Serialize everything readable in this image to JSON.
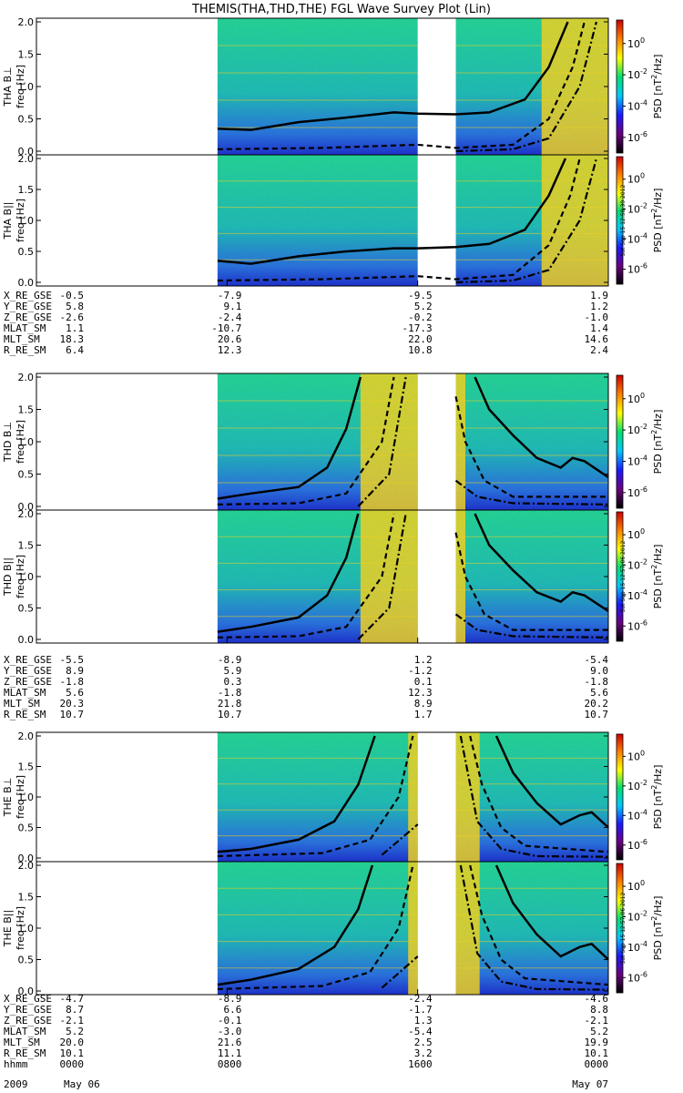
{
  "title": "THEMIS(THA,THD,THE) FGL Wave Survey Plot (Lin)",
  "colors": {
    "spectrogram_base": "#2bd08a",
    "spectrogram_low": "#1e3ad0",
    "spectrogram_high": "#f0d020",
    "hot": "#e05010",
    "curve": "#000000"
  },
  "colorbar": {
    "label": "PSD [nT^2/Hz]",
    "label_main": "PSD [nT",
    "label_sup": "2",
    "label_end": "/Hz]",
    "ticks": [
      {
        "base": "10",
        "exp": "0",
        "value": 0
      },
      {
        "base": "10",
        "exp": "-2",
        "value": -2
      },
      {
        "base": "10",
        "exp": "-4",
        "value": -4
      },
      {
        "base": "10",
        "exp": "-6",
        "value": -6
      }
    ],
    "range_log": [
      -7,
      1.5
    ],
    "stops": [
      "#000000",
      "#6a0080",
      "#1a1aff",
      "#00c8ff",
      "#00e070",
      "#ffff00",
      "#ff8000",
      "#d00000"
    ]
  },
  "chart_data": [
    {
      "type": "heatmap",
      "panel": "THA Bperp",
      "ylabel_top": "THA B⊥",
      "ylabel": "freq [Hz]",
      "y_ticks": [
        "2.0",
        "1.5",
        "1.0",
        "0.5",
        "0.0"
      ],
      "ylim": [
        0,
        2.0
      ],
      "xlim_hours": [
        0,
        24
      ],
      "data_gaps_hours": [
        [
          0,
          7.6
        ],
        [
          16.0,
          17.6
        ]
      ],
      "solid_curve": [
        [
          7.6,
          0.35
        ],
        [
          9.0,
          0.33
        ],
        [
          11.0,
          0.45
        ],
        [
          13.0,
          0.52
        ],
        [
          15.0,
          0.6
        ],
        [
          16.0,
          0.58
        ],
        [
          17.6,
          0.57
        ],
        [
          19.0,
          0.6
        ],
        [
          20.5,
          0.8
        ],
        [
          21.5,
          1.3
        ],
        [
          22.3,
          2.0
        ]
      ],
      "dashed_curve": [
        [
          7.6,
          0.03
        ],
        [
          12.0,
          0.05
        ],
        [
          16.0,
          0.1
        ],
        [
          17.6,
          0.05
        ],
        [
          20.0,
          0.1
        ],
        [
          21.5,
          0.5
        ],
        [
          22.5,
          1.3
        ],
        [
          23.0,
          2.0
        ]
      ],
      "dashdot_curve": [
        [
          17.6,
          0.0
        ],
        [
          20.0,
          0.03
        ],
        [
          21.5,
          0.2
        ],
        [
          22.8,
          1.0
        ],
        [
          23.5,
          2.0
        ]
      ]
    },
    {
      "type": "heatmap",
      "panel": "THA Bpar",
      "ylabel_top": "THA B||",
      "ylabel": "freq [Hz]",
      "y_ticks": [
        "2.0",
        "1.5",
        "1.0",
        "0.5",
        "0.0"
      ],
      "ylim": [
        0,
        2.0
      ],
      "xlim_hours": [
        0,
        24
      ],
      "data_gaps_hours": [
        [
          0,
          7.6
        ],
        [
          16.0,
          17.6
        ]
      ],
      "stamp": "Sat Sep 15 12:58:39 2012",
      "solid_curve": [
        [
          7.6,
          0.35
        ],
        [
          9.0,
          0.3
        ],
        [
          11.0,
          0.42
        ],
        [
          13.0,
          0.5
        ],
        [
          15.0,
          0.55
        ],
        [
          16.0,
          0.55
        ],
        [
          17.6,
          0.57
        ],
        [
          19.0,
          0.62
        ],
        [
          20.5,
          0.85
        ],
        [
          21.5,
          1.4
        ],
        [
          22.2,
          2.0
        ]
      ],
      "dashed_curve": [
        [
          7.6,
          0.03
        ],
        [
          12.0,
          0.05
        ],
        [
          16.0,
          0.1
        ],
        [
          17.6,
          0.05
        ],
        [
          20.0,
          0.12
        ],
        [
          21.5,
          0.6
        ],
        [
          22.4,
          1.4
        ],
        [
          22.8,
          2.0
        ]
      ],
      "dashdot_curve": [
        [
          17.6,
          0.0
        ],
        [
          20.0,
          0.03
        ],
        [
          21.5,
          0.2
        ],
        [
          22.8,
          1.0
        ],
        [
          23.5,
          2.0
        ]
      ]
    },
    {
      "type": "heatmap",
      "panel": "THD Bperp",
      "ylabel_top": "THD B⊥",
      "ylabel": "freq [Hz]",
      "y_ticks": [
        "2.0",
        "1.5",
        "1.0",
        "0.5",
        "0.0"
      ],
      "ylim": [
        0,
        2.0
      ],
      "xlim_hours": [
        0,
        24
      ],
      "data_gaps_hours": [
        [
          0,
          7.6
        ],
        [
          16.0,
          17.6
        ]
      ],
      "solid_curve": [
        [
          7.6,
          0.12
        ],
        [
          9.0,
          0.2
        ],
        [
          11.0,
          0.3
        ],
        [
          12.2,
          0.6
        ],
        [
          13.0,
          1.2
        ],
        [
          13.6,
          2.0
        ]
      ],
      "solid_curve_2": [
        [
          18.4,
          2.0
        ],
        [
          19.0,
          1.5
        ],
        [
          20.0,
          1.1
        ],
        [
          21.0,
          0.75
        ],
        [
          22.0,
          0.6
        ],
        [
          22.5,
          0.75
        ],
        [
          23.0,
          0.7
        ],
        [
          24.0,
          0.45
        ]
      ],
      "dashed_curve": [
        [
          7.6,
          0.03
        ],
        [
          11.0,
          0.05
        ],
        [
          13.0,
          0.2
        ],
        [
          14.5,
          1.0
        ],
        [
          15.0,
          2.0
        ]
      ],
      "dashed_curve_2": [
        [
          17.6,
          1.7
        ],
        [
          18.0,
          1.0
        ],
        [
          18.8,
          0.4
        ],
        [
          20.0,
          0.15
        ],
        [
          24.0,
          0.15
        ]
      ],
      "dashdot_curve": [
        [
          13.5,
          0.0
        ],
        [
          14.8,
          0.5
        ],
        [
          15.5,
          2.0
        ]
      ],
      "dashdot_curve_2": [
        [
          17.6,
          0.4
        ],
        [
          18.5,
          0.15
        ],
        [
          20.0,
          0.05
        ],
        [
          24.0,
          0.03
        ]
      ]
    },
    {
      "type": "heatmap",
      "panel": "THD Bpar",
      "ylabel_top": "THD B||",
      "ylabel": "freq [Hz]",
      "y_ticks": [
        "2.0",
        "1.5",
        "1.0",
        "0.5",
        "0.0"
      ],
      "ylim": [
        0,
        2.0
      ],
      "xlim_hours": [
        0,
        24
      ],
      "data_gaps_hours": [
        [
          0,
          7.6
        ],
        [
          16.0,
          17.6
        ]
      ],
      "stamp": "Sat Sep 15 12:57:06 2012",
      "solid_curve": [
        [
          7.6,
          0.12
        ],
        [
          9.0,
          0.2
        ],
        [
          11.0,
          0.35
        ],
        [
          12.2,
          0.7
        ],
        [
          13.0,
          1.3
        ],
        [
          13.5,
          2.0
        ]
      ],
      "solid_curve_2": [
        [
          18.4,
          2.0
        ],
        [
          19.0,
          1.5
        ],
        [
          20.0,
          1.1
        ],
        [
          21.0,
          0.75
        ],
        [
          22.0,
          0.6
        ],
        [
          22.5,
          0.75
        ],
        [
          23.0,
          0.7
        ],
        [
          24.0,
          0.45
        ]
      ],
      "dashed_curve": [
        [
          7.6,
          0.03
        ],
        [
          11.0,
          0.05
        ],
        [
          13.0,
          0.2
        ],
        [
          14.5,
          1.0
        ],
        [
          15.0,
          2.0
        ]
      ],
      "dashed_curve_2": [
        [
          17.6,
          1.7
        ],
        [
          18.0,
          1.0
        ],
        [
          18.8,
          0.4
        ],
        [
          20.0,
          0.15
        ],
        [
          24.0,
          0.15
        ]
      ],
      "dashdot_curve": [
        [
          13.5,
          0.0
        ],
        [
          14.8,
          0.5
        ],
        [
          15.5,
          2.0
        ]
      ],
      "dashdot_curve_2": [
        [
          17.6,
          0.4
        ],
        [
          18.5,
          0.15
        ],
        [
          20.0,
          0.05
        ],
        [
          24.0,
          0.03
        ]
      ]
    },
    {
      "type": "heatmap",
      "panel": "THE Bperp",
      "ylabel_top": "THE B⊥",
      "ylabel": "freq [Hz]",
      "y_ticks": [
        "2.0",
        "1.5",
        "1.0",
        "0.5",
        "0.0"
      ],
      "ylim": [
        0,
        2.0
      ],
      "xlim_hours": [
        0,
        24
      ],
      "data_gaps_hours": [
        [
          0,
          7.6
        ],
        [
          16.0,
          17.6
        ]
      ],
      "solid_curve": [
        [
          7.6,
          0.1
        ],
        [
          9.0,
          0.15
        ],
        [
          11.0,
          0.3
        ],
        [
          12.5,
          0.6
        ],
        [
          13.5,
          1.2
        ],
        [
          14.2,
          2.0
        ]
      ],
      "solid_curve_2": [
        [
          19.3,
          2.0
        ],
        [
          20.0,
          1.4
        ],
        [
          21.0,
          0.9
        ],
        [
          22.0,
          0.55
        ],
        [
          22.8,
          0.7
        ],
        [
          23.3,
          0.75
        ],
        [
          24.0,
          0.5
        ]
      ],
      "dashed_curve": [
        [
          7.6,
          0.03
        ],
        [
          12.0,
          0.08
        ],
        [
          14.0,
          0.3
        ],
        [
          15.2,
          1.0
        ],
        [
          15.8,
          2.0
        ]
      ],
      "dashed_curve_2": [
        [
          18.2,
          2.0
        ],
        [
          18.7,
          1.2
        ],
        [
          19.5,
          0.5
        ],
        [
          20.5,
          0.2
        ],
        [
          24.0,
          0.1
        ]
      ],
      "dashdot_curve": [
        [
          14.5,
          0.05
        ],
        [
          16.0,
          0.55
        ]
      ],
      "dashdot_curve_2": [
        [
          17.8,
          2.0
        ],
        [
          18.5,
          0.6
        ],
        [
          19.5,
          0.15
        ],
        [
          21.0,
          0.03
        ],
        [
          24.0,
          0.02
        ]
      ]
    },
    {
      "type": "heatmap",
      "panel": "THE Bpar",
      "ylabel_top": "THE B||",
      "ylabel": "freq [Hz]",
      "y_ticks": [
        "2.0",
        "1.5",
        "1.0",
        "0.5",
        "0.0"
      ],
      "ylim": [
        0,
        2.0
      ],
      "xlim_hours": [
        0,
        24
      ],
      "data_gaps_hours": [
        [
          0,
          7.6
        ],
        [
          16.0,
          17.6
        ]
      ],
      "stamp": "Sat Sep 15 12:57:06 2012",
      "solid_curve": [
        [
          7.6,
          0.1
        ],
        [
          9.0,
          0.18
        ],
        [
          11.0,
          0.35
        ],
        [
          12.5,
          0.7
        ],
        [
          13.5,
          1.3
        ],
        [
          14.1,
          2.0
        ]
      ],
      "solid_curve_2": [
        [
          19.3,
          2.0
        ],
        [
          20.0,
          1.4
        ],
        [
          21.0,
          0.9
        ],
        [
          22.0,
          0.55
        ],
        [
          22.8,
          0.7
        ],
        [
          23.3,
          0.75
        ],
        [
          24.0,
          0.5
        ]
      ],
      "dashed_curve": [
        [
          7.6,
          0.03
        ],
        [
          12.0,
          0.08
        ],
        [
          14.0,
          0.3
        ],
        [
          15.2,
          1.0
        ],
        [
          15.8,
          2.0
        ]
      ],
      "dashed_curve_2": [
        [
          18.2,
          2.0
        ],
        [
          18.7,
          1.2
        ],
        [
          19.5,
          0.5
        ],
        [
          20.5,
          0.2
        ],
        [
          24.0,
          0.1
        ]
      ],
      "dashdot_curve": [
        [
          14.5,
          0.05
        ],
        [
          16.0,
          0.55
        ]
      ],
      "dashdot_curve_2": [
        [
          17.8,
          2.0
        ],
        [
          18.5,
          0.6
        ],
        [
          19.5,
          0.15
        ],
        [
          21.0,
          0.03
        ],
        [
          24.0,
          0.02
        ]
      ]
    }
  ],
  "ephemeris": [
    {
      "rows": [
        {
          "label": "X_RE_GSE",
          "values": [
            "-0.5",
            "-7.9",
            "-9.5",
            "1.9"
          ]
        },
        {
          "label": "Y_RE_GSE",
          "values": [
            "5.8",
            "9.1",
            "5.2",
            "1.2"
          ]
        },
        {
          "label": "Z_RE_GSE",
          "values": [
            "-2.6",
            "-2.4",
            "-0.2",
            "-1.0"
          ]
        },
        {
          "label": "MLAT_SM",
          "values": [
            "1.1",
            "-10.7",
            "-17.3",
            "1.4"
          ]
        },
        {
          "label": "MLT_SM",
          "values": [
            "18.3",
            "20.6",
            "22.0",
            "14.6"
          ]
        },
        {
          "label": "R_RE_SM",
          "values": [
            "6.4",
            "12.3",
            "10.8",
            "2.4"
          ]
        }
      ]
    },
    {
      "rows": [
        {
          "label": "X_RE_GSE",
          "values": [
            "-5.5",
            "-8.9",
            "1.2",
            "-5.4"
          ]
        },
        {
          "label": "Y_RE_GSE",
          "values": [
            "8.9",
            "5.9",
            "-1.2",
            "9.0"
          ]
        },
        {
          "label": "Z_RE_GSE",
          "values": [
            "-1.8",
            "0.3",
            "0.1",
            "-1.8"
          ]
        },
        {
          "label": "MLAT_SM",
          "values": [
            "5.6",
            "-1.8",
            "12.3",
            "5.6"
          ]
        },
        {
          "label": "MLT_SM",
          "values": [
            "20.3",
            "21.8",
            "8.9",
            "20.2"
          ]
        },
        {
          "label": "R_RE_SM",
          "values": [
            "10.7",
            "10.7",
            "1.7",
            "10.7"
          ]
        }
      ]
    },
    {
      "rows": [
        {
          "label": "X_RE_GSE",
          "values": [
            "-4.7",
            "-8.9",
            "-2.4",
            "-4.6"
          ]
        },
        {
          "label": "Y_RE_GSE",
          "values": [
            "8.7",
            "6.6",
            "-1.7",
            "8.8"
          ]
        },
        {
          "label": "Z_RE_GSE",
          "values": [
            "-2.1",
            "-0.1",
            "1.3",
            "-2.1"
          ]
        },
        {
          "label": "MLAT_SM",
          "values": [
            "5.2",
            "-3.0",
            "-5.4",
            "5.2"
          ]
        },
        {
          "label": "MLT_SM",
          "values": [
            "20.0",
            "21.6",
            "2.5",
            "19.9"
          ]
        },
        {
          "label": "R_RE_SM",
          "values": [
            "10.1",
            "11.1",
            "3.2",
            "10.1"
          ]
        },
        {
          "label": "hhmm",
          "values": [
            "0000",
            "0800",
            "1600",
            "0000"
          ]
        }
      ]
    }
  ],
  "time_axis": {
    "start_label": "2009",
    "start_date": "May 06",
    "end_date": "May 07"
  }
}
